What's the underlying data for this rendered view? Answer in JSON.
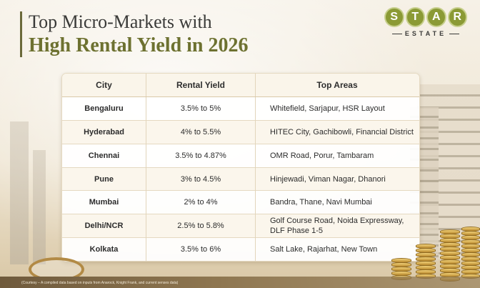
{
  "title": {
    "line1": "Top Micro-Markets with",
    "line2": "High Rental Yield in 2026"
  },
  "logo": {
    "letters": [
      "S",
      "T",
      "A",
      "R"
    ],
    "subtitle": "ESTATE"
  },
  "table": {
    "headers": [
      "City",
      "Rental Yield",
      "Top Areas"
    ],
    "rows": [
      {
        "city": "Bengaluru",
        "yield": "3.5% to 5%",
        "areas": "Whitefield, Sarjapur, HSR Layout"
      },
      {
        "city": "Hyderabad",
        "yield": "4% to 5.5%",
        "areas": "HITEC City, Gachibowli, Financial District"
      },
      {
        "city": "Chennai",
        "yield": "3.5% to 4.87%",
        "areas": "OMR Road, Porur, Tambaram"
      },
      {
        "city": "Pune",
        "yield": "3% to 4.5%",
        "areas": "Hinjewadi, Viman Nagar, Dhanori"
      },
      {
        "city": "Mumbai",
        "yield": "2% to 4%",
        "areas": "Bandra, Thane, Navi Mumbai"
      },
      {
        "city": "Delhi/NCR",
        "yield": "2.5% to 5.8%",
        "areas": "Golf Course Road, Noida Expressway, DLF Phase 1-5"
      },
      {
        "city": "Kolkata",
        "yield": "3.5% to 6%",
        "areas": "Salt Lake, Rajarhat, New Town"
      }
    ]
  },
  "footnote": "(Courtesy – A compiled data based on inputs from Anarock, Knight Frank, and current senses data)",
  "colors": {
    "title_dark": "#3a3a38",
    "title_accent": "#6d7130",
    "logo_green": "#8b9a35"
  }
}
